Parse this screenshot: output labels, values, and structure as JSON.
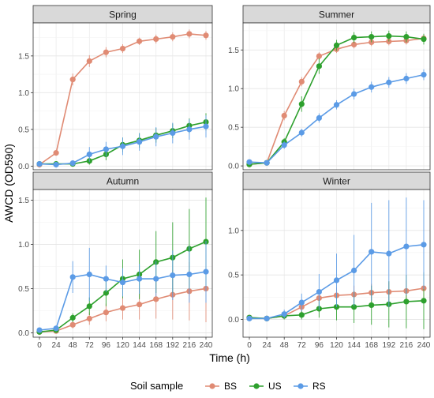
{
  "chart_data": {
    "type": "line",
    "xlabel": "Time (h)",
    "ylabel": "AWCD (OD590)",
    "x": [
      0,
      24,
      48,
      72,
      96,
      120,
      144,
      168,
      192,
      216,
      240
    ],
    "x_ticks": [
      "0",
      "24",
      "48",
      "72",
      "96",
      "120",
      "144",
      "168",
      "192",
      "216",
      "240"
    ],
    "legend": {
      "title": "Soil sample",
      "position": "bottom",
      "entries": [
        {
          "name": "BS",
          "color": "#E08B74"
        },
        {
          "name": "US",
          "color": "#2DA02D"
        },
        {
          "name": "RS",
          "color": "#5B9BE6"
        }
      ]
    },
    "panels": [
      {
        "title": "Spring",
        "ylim": [
          -0.05,
          1.95
        ],
        "y_ticks": [
          "0.0",
          "0.5",
          "1.0",
          "1.5"
        ],
        "series": [
          {
            "name": "BS",
            "values": [
              0.02,
              0.18,
              1.18,
              1.43,
              1.55,
              1.6,
              1.7,
              1.73,
              1.76,
              1.8,
              1.78
            ],
            "errors": [
              0.02,
              0.03,
              0.08,
              0.08,
              0.07,
              0.06,
              0.05,
              0.06,
              0.06,
              0.06,
              0.06
            ]
          },
          {
            "name": "US",
            "values": [
              0.03,
              0.03,
              0.03,
              0.07,
              0.16,
              0.29,
              0.35,
              0.42,
              0.48,
              0.55,
              0.6
            ],
            "errors": [
              0.02,
              0.02,
              0.02,
              0.05,
              0.08,
              0.1,
              0.1,
              0.1,
              0.1,
              0.1,
              0.12
            ]
          },
          {
            "name": "RS",
            "values": [
              0.03,
              0.02,
              0.04,
              0.16,
              0.23,
              0.27,
              0.33,
              0.4,
              0.45,
              0.5,
              0.54
            ],
            "errors": [
              0.02,
              0.02,
              0.02,
              0.1,
              0.1,
              0.12,
              0.12,
              0.13,
              0.14,
              0.14,
              0.15
            ]
          }
        ]
      },
      {
        "title": "Summer",
        "ylim": [
          -0.05,
          1.85
        ],
        "y_ticks": [
          "0.0",
          "0.5",
          "1.0",
          "1.5"
        ],
        "series": [
          {
            "name": "BS",
            "values": [
              0.02,
              0.04,
              0.65,
              1.09,
              1.42,
              1.51,
              1.57,
              1.6,
              1.61,
              1.62,
              1.65
            ],
            "errors": [
              0.02,
              0.02,
              0.06,
              0.06,
              0.05,
              0.05,
              0.05,
              0.05,
              0.05,
              0.05,
              0.05
            ]
          },
          {
            "name": "US",
            "values": [
              0.02,
              0.04,
              0.31,
              0.8,
              1.29,
              1.56,
              1.66,
              1.67,
              1.68,
              1.67,
              1.64
            ],
            "errors": [
              0.02,
              0.02,
              0.05,
              0.1,
              0.1,
              0.07,
              0.07,
              0.07,
              0.07,
              0.07,
              0.07
            ]
          },
          {
            "name": "RS",
            "values": [
              0.05,
              0.04,
              0.27,
              0.43,
              0.62,
              0.79,
              0.93,
              1.02,
              1.08,
              1.13,
              1.18
            ],
            "errors": [
              0.03,
              0.02,
              0.05,
              0.05,
              0.06,
              0.06,
              0.07,
              0.07,
              0.07,
              0.07,
              0.07
            ]
          }
        ]
      },
      {
        "title": "Autumn",
        "ylim": [
          -0.05,
          1.62
        ],
        "y_ticks": [
          "0.0",
          "0.5",
          "1.0",
          "1.5"
        ],
        "series": [
          {
            "name": "BS",
            "values": [
              0.01,
              0.02,
              0.09,
              0.16,
              0.23,
              0.28,
              0.32,
              0.38,
              0.43,
              0.47,
              0.5
            ],
            "errors": [
              0.02,
              0.02,
              0.04,
              0.07,
              0.1,
              0.13,
              0.17,
              0.22,
              0.28,
              0.33,
              0.38
            ]
          },
          {
            "name": "US",
            "values": [
              0.01,
              0.03,
              0.17,
              0.3,
              0.45,
              0.61,
              0.66,
              0.8,
              0.85,
              0.95,
              1.03
            ],
            "errors": [
              0.02,
              0.02,
              0.05,
              0.1,
              0.15,
              0.22,
              0.28,
              0.35,
              0.4,
              0.45,
              0.5
            ]
          },
          {
            "name": "RS",
            "values": [
              0.03,
              0.05,
              0.63,
              0.66,
              0.61,
              0.57,
              0.61,
              0.61,
              0.65,
              0.66,
              0.69
            ],
            "errors": [
              0.02,
              0.03,
              0.18,
              0.3,
              0.15,
              0.16,
              0.17,
              0.2,
              0.28,
              0.32,
              0.35
            ]
          }
        ]
      },
      {
        "title": "Winter",
        "ylim": [
          -0.2,
          1.46
        ],
        "y_ticks": [
          "0.0",
          "0.5",
          "1.0"
        ],
        "series": [
          {
            "name": "BS",
            "values": [
              0.02,
              0.01,
              0.04,
              0.14,
              0.24,
              0.27,
              0.28,
              0.3,
              0.31,
              0.32,
              0.35
            ],
            "errors": [
              0.02,
              0.02,
              0.04,
              0.07,
              0.08,
              0.09,
              0.1,
              0.1,
              0.11,
              0.12,
              0.12
            ]
          },
          {
            "name": "US",
            "values": [
              0.02,
              0.01,
              0.04,
              0.05,
              0.12,
              0.14,
              0.14,
              0.16,
              0.17,
              0.2,
              0.21
            ],
            "errors": [
              0.02,
              0.02,
              0.04,
              0.05,
              0.1,
              0.15,
              0.18,
              0.22,
              0.26,
              0.3,
              0.32
            ]
          },
          {
            "name": "RS",
            "values": [
              0.01,
              0.01,
              0.06,
              0.19,
              0.31,
              0.44,
              0.55,
              0.76,
              0.74,
              0.82,
              0.84
            ],
            "errors": [
              0.02,
              0.02,
              0.05,
              0.1,
              0.2,
              0.3,
              0.4,
              0.55,
              0.6,
              0.55,
              0.5
            ]
          }
        ]
      }
    ]
  }
}
